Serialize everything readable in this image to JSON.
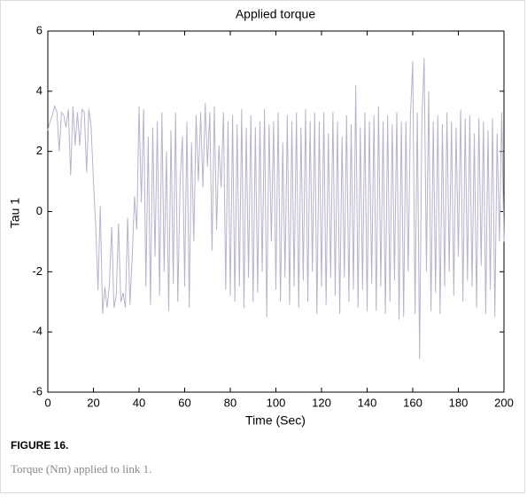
{
  "chart_data": {
    "type": "line",
    "title": "Applied torque",
    "xlabel": "Time (Sec)",
    "ylabel": "Tau 1",
    "color": "#b4b4cc",
    "xlim": [
      0,
      200
    ],
    "ylim": [
      -6,
      6
    ],
    "xticks": [
      0,
      20,
      40,
      60,
      80,
      100,
      120,
      140,
      160,
      180,
      200
    ],
    "yticks": [
      -6,
      -4,
      -2,
      0,
      2,
      4,
      6
    ],
    "x": [
      0,
      1,
      2,
      3,
      4,
      5,
      6,
      7,
      8,
      9,
      10,
      11,
      12,
      13,
      14,
      15,
      16,
      17,
      18,
      19,
      20,
      21,
      22,
      23,
      24,
      25,
      26,
      27,
      28,
      29,
      30,
      31,
      32,
      33,
      34,
      35,
      36,
      37,
      38,
      39,
      40,
      41,
      42,
      43,
      44,
      45,
      46,
      47,
      48,
      49,
      50,
      51,
      52,
      53,
      54,
      55,
      56,
      57,
      58,
      59,
      60,
      61,
      62,
      63,
      64,
      65,
      66,
      67,
      68,
      69,
      70,
      71,
      72,
      73,
      74,
      75,
      76,
      77,
      78,
      79,
      80,
      81,
      82,
      83,
      84,
      85,
      86,
      87,
      88,
      89,
      90,
      91,
      92,
      93,
      94,
      95,
      96,
      97,
      98,
      99,
      100,
      101,
      102,
      103,
      104,
      105,
      106,
      107,
      108,
      109,
      110,
      111,
      112,
      113,
      114,
      115,
      116,
      117,
      118,
      119,
      120,
      121,
      122,
      123,
      124,
      125,
      126,
      127,
      128,
      129,
      130,
      131,
      132,
      133,
      134,
      135,
      136,
      137,
      138,
      139,
      140,
      141,
      142,
      143,
      144,
      145,
      146,
      147,
      148,
      149,
      150,
      151,
      152,
      153,
      154,
      155,
      156,
      157,
      158,
      159,
      160,
      161,
      162,
      163,
      164,
      165,
      166,
      167,
      168,
      169,
      170,
      171,
      172,
      173,
      174,
      175,
      176,
      177,
      178,
      179,
      180,
      181,
      182,
      183,
      184,
      185,
      186,
      187,
      188,
      189,
      190,
      191,
      192,
      193,
      194,
      195,
      196,
      197,
      198,
      199,
      200
    ],
    "values": [
      2.7,
      3.0,
      3.2,
      3.5,
      3.3,
      2.0,
      3.3,
      3.2,
      2.8,
      3.4,
      1.2,
      3.5,
      2.2,
      3.3,
      2.2,
      3.4,
      3.3,
      1.3,
      3.4,
      2.8,
      1.0,
      -0.5,
      -2.6,
      0.2,
      -3.4,
      -2.5,
      -3.2,
      -2.4,
      -0.5,
      -3.2,
      -2.8,
      -0.4,
      -3.0,
      -2.7,
      -3.2,
      -0.2,
      -3.1,
      -1.5,
      0.5,
      -0.6,
      3.5,
      0.3,
      3.4,
      -2.5,
      2.5,
      -3.1,
      2.8,
      -1.5,
      3.0,
      -2.8,
      3.3,
      -2.0,
      2.0,
      -3.3,
      2.7,
      -2.4,
      3.3,
      -3.0,
      1.0,
      2.5,
      -2.5,
      3.0,
      -3.2,
      2.3,
      -1.0,
      3.2,
      1.0,
      3.3,
      0.8,
      3.6,
      1.5,
      3.3,
      -1.3,
      3.5,
      -0.6,
      2.2,
      0.8,
      3.3,
      -2.6,
      3.0,
      -2.8,
      3.2,
      -3.0,
      2.9,
      -2.5,
      3.4,
      -3.2,
      2.8,
      -2.2,
      3.2,
      -3.0,
      2.8,
      -2.7,
      3.0,
      -2.0,
      3.4,
      -3.5,
      2.9,
      -1.0,
      3.0,
      -2.6,
      3.3,
      -3.0,
      2.3,
      -2.2,
      3.2,
      -3.1,
      3.0,
      -2.5,
      3.3,
      -3.2,
      2.8,
      -2.3,
      3.4,
      -3.0,
      3.0,
      -2.0,
      3.3,
      -3.4,
      3.0,
      -2.5,
      3.3,
      -3.1,
      2.6,
      -2.2,
      3.3,
      -2.8,
      3.0,
      -3.4,
      2.5,
      -2.2,
      3.2,
      -3.0,
      2.9,
      -2.6,
      4.2,
      -3.2,
      2.8,
      -2.6,
      3.3,
      -3.3,
      3.0,
      -2.4,
      3.2,
      -3.3,
      3.5,
      -2.5,
      3.0,
      -3.4,
      3.2,
      -3.0,
      2.9,
      -2.3,
      3.3,
      -3.6,
      3.0,
      -3.5,
      3.0,
      -2.0,
      3.2,
      5.0,
      -3.4,
      3.3,
      -4.9,
      3.0,
      5.1,
      -2.0,
      4.0,
      -3.3,
      3.0,
      -2.7,
      3.2,
      -3.4,
      2.9,
      -2.5,
      3.3,
      -2.0,
      3.0,
      -2.8,
      2.8,
      -1.5,
      3.4,
      -3.0,
      3.1,
      -2.3,
      3.2,
      -2.5,
      2.6,
      -3.2,
      3.1,
      -1.8,
      3.0,
      -3.4,
      2.7,
      -2.6,
      3.1,
      -3.5,
      2.6,
      -1.0,
      3.3,
      -1.0
    ]
  },
  "figure": {
    "label": "FIGURE 16.",
    "caption": "Torque (Nm) applied to link 1."
  }
}
